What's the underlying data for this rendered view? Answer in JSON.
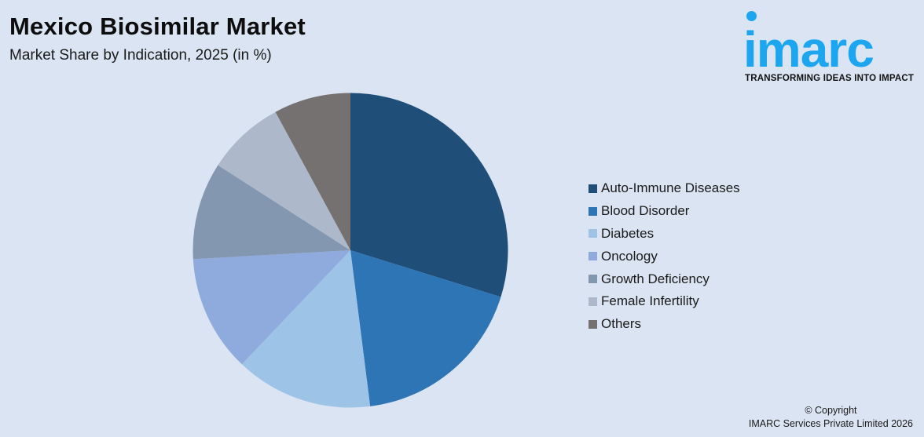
{
  "header": {
    "title": "Mexico Biosimilar Market",
    "subtitle": "Market Share by Indication, 2025 (in %)"
  },
  "logo": {
    "word": "imarc",
    "tagline": "TRANSFORMING IDEAS INTO IMPACT",
    "color": "#1ba6ef"
  },
  "footer": {
    "copyright_line1": "© Copyright",
    "copyright_line2": "IMARC Services Private Limited 2026"
  },
  "chart_data": {
    "type": "pie",
    "title": "Mexico Biosimilar Market",
    "subtitle": "Market Share by Indication, 2025 (in %)",
    "categories": [
      "Auto-Immune Diseases",
      "Blood Disorder",
      "Diabetes",
      "Oncology",
      "Growth Deficiency",
      "Female Infertility",
      "Others"
    ],
    "values": [
      29.8,
      18.2,
      14.1,
      12.0,
      10.0,
      8.0,
      7.9
    ],
    "colors": [
      "#1f4e79",
      "#2e75b6",
      "#9dc3e6",
      "#8faadc",
      "#8497b0",
      "#adb9ca",
      "#767171"
    ],
    "start_angle_deg": 0,
    "direction": "clockwise",
    "legend_position": "right",
    "data_labels": false
  }
}
